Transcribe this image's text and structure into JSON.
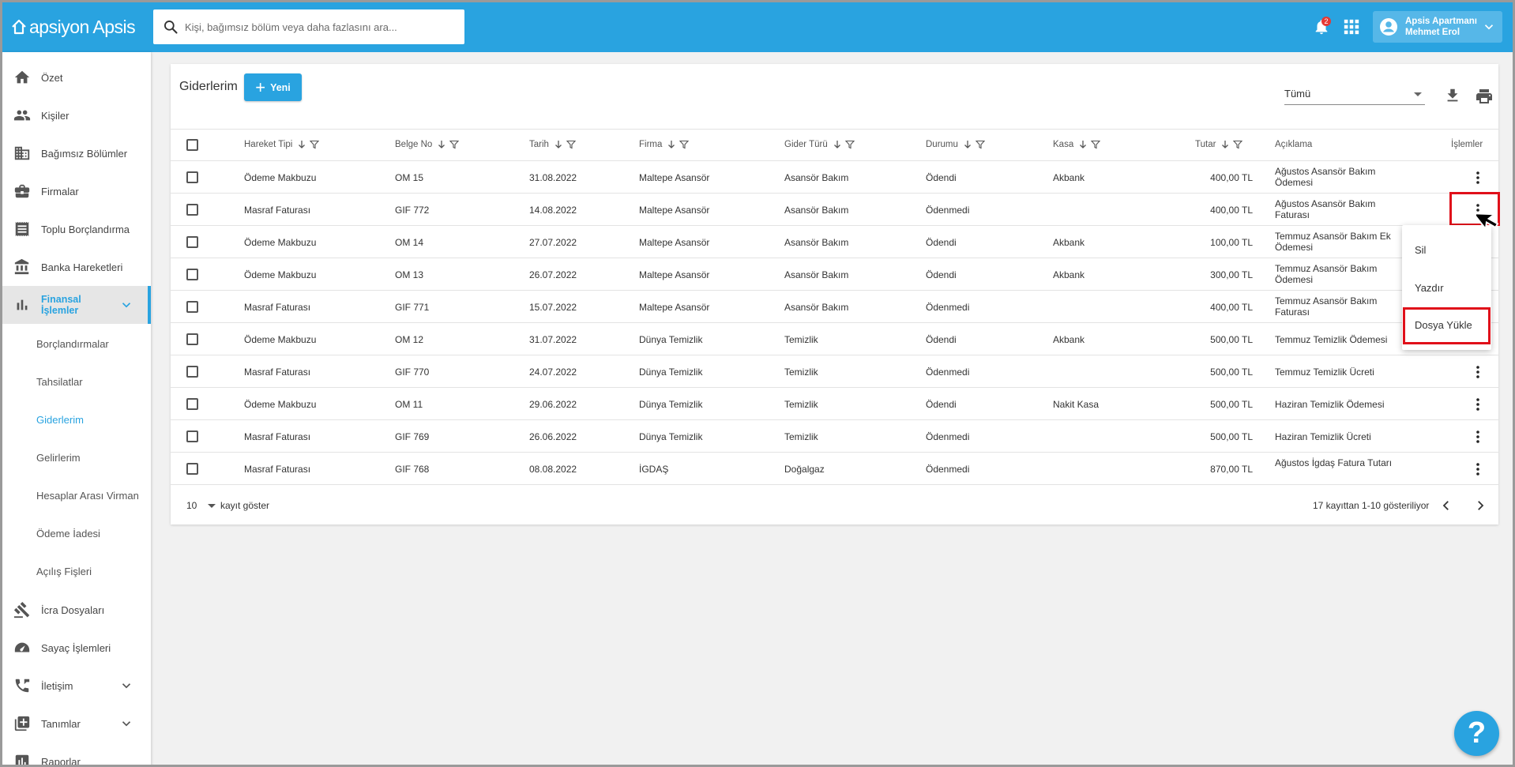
{
  "app": {
    "logo_text": "apsiyon Apsis"
  },
  "search": {
    "placeholder": "Kişi, bağımsız bölüm veya daha fazlasını ara..."
  },
  "header": {
    "notification_count": "2",
    "user_line1": "Apsis Apartmanı",
    "user_line2": "Mehmet Erol"
  },
  "sidebar": {
    "items": [
      {
        "label": "Özet",
        "icon": "home-icon"
      },
      {
        "label": "Kişiler",
        "icon": "people-icon"
      },
      {
        "label": "Bağımsız Bölümler",
        "icon": "building-icon"
      },
      {
        "label": "Firmalar",
        "icon": "briefcase-icon"
      },
      {
        "label": "Toplu Borçlandırma",
        "icon": "receipt-icon"
      },
      {
        "label": "Banka Hareketleri",
        "icon": "bank-icon"
      },
      {
        "label": "Finansal İşlemler",
        "icon": "bar-chart-icon"
      },
      {
        "label": "İcra Dosyaları",
        "icon": "gavel-icon"
      },
      {
        "label": "Sayaç İşlemleri",
        "icon": "gauge-icon"
      },
      {
        "label": "İletişim",
        "icon": "phone-icon"
      },
      {
        "label": "Tanımlar",
        "icon": "add-box-icon"
      },
      {
        "label": "Raporlar",
        "icon": "report-icon"
      }
    ],
    "sub_items": [
      "Borçlandırmalar",
      "Tahsilatlar",
      "Giderlerim",
      "Gelirlerim",
      "Hesaplar Arası Virman",
      "Ödeme İadesi",
      "Açılış Fişleri"
    ]
  },
  "page": {
    "title": "Giderlerim",
    "new_button": "Yeni",
    "filter_value": "Tümü"
  },
  "table": {
    "columns": {
      "hareket_tipi": "Hareket Tipi",
      "belge_no": "Belge No",
      "tarih": "Tarih",
      "firma": "Firma",
      "gider_turu": "Gider Türü",
      "durumu": "Durumu",
      "kasa": "Kasa",
      "tutar": "Tutar",
      "aciklama": "Açıklama",
      "islemler": "İşlemler"
    },
    "rows": [
      {
        "type": "Ödeme Makbuzu",
        "doc": "OM 15",
        "date": "31.08.2022",
        "firm": "Maltepe Asansör",
        "expense": "Asansör Bakım",
        "status": "Ödendi",
        "cash": "Akbank",
        "amount": "400,00 TL",
        "desc": "Ağustos Asansör Bakım Ödemesi"
      },
      {
        "type": "Masraf Faturası",
        "doc": "GIF 772",
        "date": "14.08.2022",
        "firm": "Maltepe Asansör",
        "expense": "Asansör Bakım",
        "status": "Ödenmedi",
        "cash": "",
        "amount": "400,00 TL",
        "desc": "Ağustos Asansör Bakım Faturası"
      },
      {
        "type": "Ödeme Makbuzu",
        "doc": "OM 14",
        "date": "27.07.2022",
        "firm": "Maltepe Asansör",
        "expense": "Asansör Bakım",
        "status": "Ödendi",
        "cash": "Akbank",
        "amount": "100,00 TL",
        "desc": "Temmuz Asansör Bakım Ek Ödemesi"
      },
      {
        "type": "Ödeme Makbuzu",
        "doc": "OM 13",
        "date": "26.07.2022",
        "firm": "Maltepe Asansör",
        "expense": "Asansör Bakım",
        "status": "Ödendi",
        "cash": "Akbank",
        "amount": "300,00 TL",
        "desc": "Temmuz Asansör Bakım Ödemesi"
      },
      {
        "type": "Masraf Faturası",
        "doc": "GIF 771",
        "date": "15.07.2022",
        "firm": "Maltepe Asansör",
        "expense": "Asansör Bakım",
        "status": "Ödenmedi",
        "cash": "",
        "amount": "400,00 TL",
        "desc": "Temmuz Asansör Bakım Faturası"
      },
      {
        "type": "Ödeme Makbuzu",
        "doc": "OM 12",
        "date": "31.07.2022",
        "firm": "Dünya Temizlik",
        "expense": "Temizlik",
        "status": "Ödendi",
        "cash": "Akbank",
        "amount": "500,00 TL",
        "desc": "Temmuz Temizlik Ödemesi"
      },
      {
        "type": "Masraf Faturası",
        "doc": "GIF 770",
        "date": "24.07.2022",
        "firm": "Dünya Temizlik",
        "expense": "Temizlik",
        "status": "Ödenmedi",
        "cash": "",
        "amount": "500,00 TL",
        "desc": "Temmuz Temizlik Ücreti"
      },
      {
        "type": "Ödeme Makbuzu",
        "doc": "OM 11",
        "date": "29.06.2022",
        "firm": "Dünya Temizlik",
        "expense": "Temizlik",
        "status": "Ödendi",
        "cash": "Nakit Kasa",
        "amount": "500,00 TL",
        "desc": "Haziran Temizlik Ödemesi"
      },
      {
        "type": "Masraf Faturası",
        "doc": "GIF 769",
        "date": "26.06.2022",
        "firm": "Dünya Temizlik",
        "expense": "Temizlik",
        "status": "Ödenmedi",
        "cash": "",
        "amount": "500,00 TL",
        "desc": "Haziran Temizlik Ücreti"
      },
      {
        "type": "Masraf Faturası",
        "doc": "GIF 768",
        "date": "08.08.2022",
        "firm": "İGDAŞ",
        "expense": "Doğalgaz",
        "status": "Ödenmedi",
        "cash": "",
        "amount": "870,00 TL",
        "desc": "Ağustos İgdaş Fatura Tutarı"
      }
    ]
  },
  "pagination": {
    "page_size": "10",
    "page_size_label": "kayıt göster",
    "info": "17 kayıttan 1-10 gösteriliyor"
  },
  "context_menu": {
    "items": [
      "Sil",
      "Yazdır",
      "Dosya Yükle"
    ]
  },
  "help": {
    "label": "?"
  },
  "colors": {
    "accent": "#29a3e0",
    "highlight": "#e0101a"
  }
}
